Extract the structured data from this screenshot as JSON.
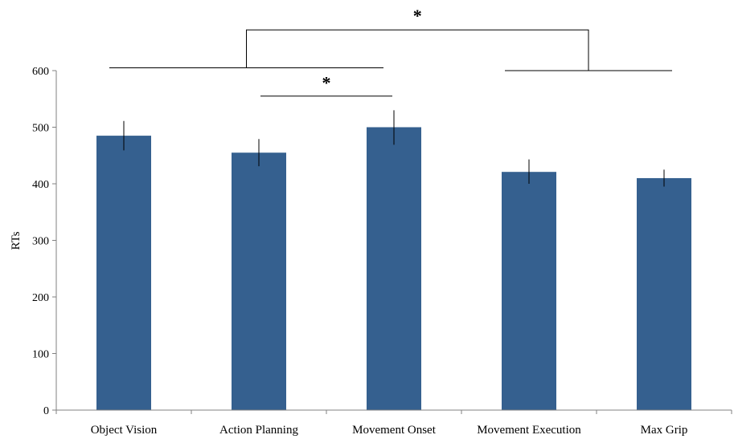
{
  "chart_data": {
    "type": "bar",
    "categories": [
      "Object Vision",
      "Action Planning",
      "Movement Onset",
      "Movement Execution",
      "Max Grip"
    ],
    "values": [
      485,
      455,
      500,
      421,
      410
    ],
    "error_bars": [
      [
        459,
        511
      ],
      [
        431,
        479
      ],
      [
        469,
        530
      ],
      [
        400,
        443
      ],
      [
        395,
        425
      ]
    ],
    "ylabel": "RTs",
    "ylim": [
      0,
      600
    ],
    "yticks": [
      0,
      100,
      200,
      300,
      400,
      500,
      600
    ],
    "grid": false,
    "legend": "none",
    "bar_color": "#35608F",
    "significance": [
      {
        "label": "*",
        "between": [
          "Action Planning",
          "Movement Onset"
        ]
      },
      {
        "label": "*",
        "between": [
          [
            "Object Vision",
            "Action Planning",
            "Movement Onset"
          ],
          [
            "Movement Execution",
            "Max Grip"
          ]
        ]
      }
    ]
  }
}
